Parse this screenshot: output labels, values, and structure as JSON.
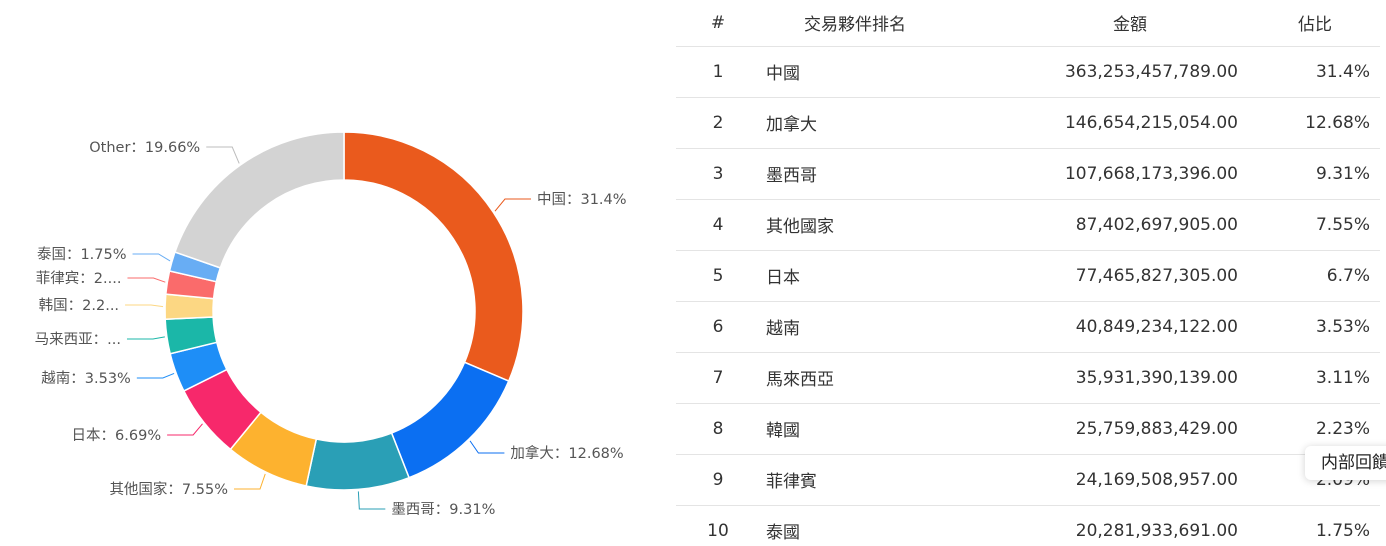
{
  "chart_data": {
    "type": "pie",
    "donut": true,
    "grid": false,
    "legend": "none",
    "slices": [
      {
        "name": "中国",
        "label": "中国：31.4%",
        "value": 31.4,
        "color": "#ea5a1d"
      },
      {
        "name": "加拿大",
        "label": "加拿大：12.68%",
        "value": 12.68,
        "color": "#0b6ff2"
      },
      {
        "name": "墨西哥",
        "label": "墨西哥：9.31%",
        "value": 9.31,
        "color": "#2a9fb6"
      },
      {
        "name": "其他国家",
        "label": "其他国家：7.55%",
        "value": 7.55,
        "color": "#fdb22f"
      },
      {
        "name": "日本",
        "label": "日本：6.69%",
        "value": 6.69,
        "color": "#f7286b"
      },
      {
        "name": "越南",
        "label": "越南：3.53%",
        "value": 3.53,
        "color": "#1e8ef7"
      },
      {
        "name": "马来西亚",
        "label": "马来西亚：...",
        "value": 3.11,
        "color": "#1bb7a8"
      },
      {
        "name": "韩国",
        "label": "韩国：2.2...",
        "value": 2.23,
        "color": "#fcd783"
      },
      {
        "name": "菲律宾",
        "label": "菲律宾：2....",
        "value": 2.09,
        "color": "#fa6b6b"
      },
      {
        "name": "泰国",
        "label": "泰国：1.75%",
        "value": 1.75,
        "color": "#68adf4"
      },
      {
        "name": "Other",
        "label": "Other：19.66%",
        "value": 19.66,
        "color": "#d3d3d3"
      }
    ]
  },
  "table": {
    "headers": {
      "rank": "#",
      "partner": "交易夥伴排名",
      "amount": "金額",
      "share": "佔比"
    },
    "rows": [
      {
        "rank": "1",
        "partner": "中國",
        "amount": "363,253,457,789.00",
        "share": "31.4%"
      },
      {
        "rank": "2",
        "partner": "加拿大",
        "amount": "146,654,215,054.00",
        "share": "12.68%"
      },
      {
        "rank": "3",
        "partner": "墨西哥",
        "amount": "107,668,173,396.00",
        "share": "9.31%"
      },
      {
        "rank": "4",
        "partner": "其他國家",
        "amount": "87,402,697,905.00",
        "share": "7.55%"
      },
      {
        "rank": "5",
        "partner": "日本",
        "amount": "77,465,827,305.00",
        "share": "6.7%"
      },
      {
        "rank": "6",
        "partner": "越南",
        "amount": "40,849,234,122.00",
        "share": "3.53%"
      },
      {
        "rank": "7",
        "partner": "馬來西亞",
        "amount": "35,931,390,139.00",
        "share": "3.11%"
      },
      {
        "rank": "8",
        "partner": "韓國",
        "amount": "25,759,883,429.00",
        "share": "2.23%"
      },
      {
        "rank": "9",
        "partner": "菲律賓",
        "amount": "24,169,508,957.00",
        "share": "2.09%"
      },
      {
        "rank": "10",
        "partner": "泰國",
        "amount": "20,281,933,691.00",
        "share": "1.75%"
      }
    ]
  },
  "floating_button": {
    "label": "内部回饋"
  }
}
